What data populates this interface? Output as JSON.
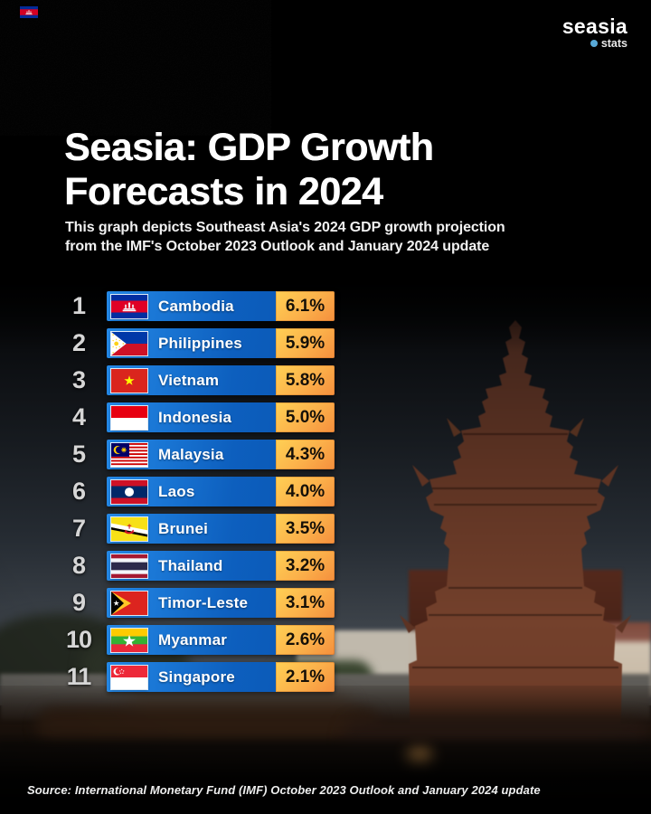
{
  "header": {
    "brand_name": "seasia",
    "brand_sub": "stats",
    "badge_flag": "cambodia"
  },
  "title_line1": "Seasia: GDP Growth",
  "title_line2": "Forecasts in 2024",
  "subtitle_line1": "This graph depicts Southeast Asia's 2024 GDP growth projection",
  "subtitle_line2": "from the IMF's October 2023 Outlook and January 2024 update",
  "chart_data": {
    "type": "bar",
    "title": "Seasia: GDP Growth Forecasts in 2024",
    "unit": "percent GDP growth, 2024 projection",
    "value_suffix": "%",
    "categories": [
      "Cambodia",
      "Philippines",
      "Vietnam",
      "Indonesia",
      "Malaysia",
      "Laos",
      "Brunei",
      "Thailand",
      "Timor-Leste",
      "Myanmar",
      "Singapore"
    ],
    "values": [
      6.1,
      5.9,
      5.8,
      5.0,
      4.3,
      4.0,
      3.5,
      3.2,
      3.1,
      2.6,
      2.1
    ],
    "rows": [
      {
        "rank": "1",
        "country": "Cambodia",
        "value_label": "6.1%",
        "flag": "cambodia"
      },
      {
        "rank": "2",
        "country": "Philippines",
        "value_label": "5.9%",
        "flag": "philippines"
      },
      {
        "rank": "3",
        "country": "Vietnam",
        "value_label": "5.8%",
        "flag": "vietnam"
      },
      {
        "rank": "4",
        "country": "Indonesia",
        "value_label": "5.0%",
        "flag": "indonesia"
      },
      {
        "rank": "5",
        "country": "Malaysia",
        "value_label": "4.3%",
        "flag": "malaysia"
      },
      {
        "rank": "6",
        "country": "Laos",
        "value_label": "4.0%",
        "flag": "laos"
      },
      {
        "rank": "7",
        "country": "Brunei",
        "value_label": "3.5%",
        "flag": "brunei"
      },
      {
        "rank": "8",
        "country": "Thailand",
        "value_label": "3.2%",
        "flag": "thailand"
      },
      {
        "rank": "9",
        "country": "Timor-Leste",
        "value_label": "3.1%",
        "flag": "timor-leste"
      },
      {
        "rank": "10",
        "country": "Myanmar",
        "value_label": "2.6%",
        "flag": "myanmar"
      },
      {
        "rank": "11",
        "country": "Singapore",
        "value_label": "2.1%",
        "flag": "singapore"
      }
    ]
  },
  "colors": {
    "background": "#000000",
    "bar_blue_start": "#2488e6",
    "bar_blue_end": "#0a55b2",
    "badge_orange_start": "#ffd054",
    "badge_orange_end": "#f58f3d",
    "rank_text": "#d6d6d6",
    "country_text": "#ffffff",
    "value_text": "#151008",
    "brand_dot": "#58a9d7"
  },
  "footer": {
    "source": "Source: International Monetary Fund (IMF) October 2023 Outlook and January 2024 update"
  }
}
